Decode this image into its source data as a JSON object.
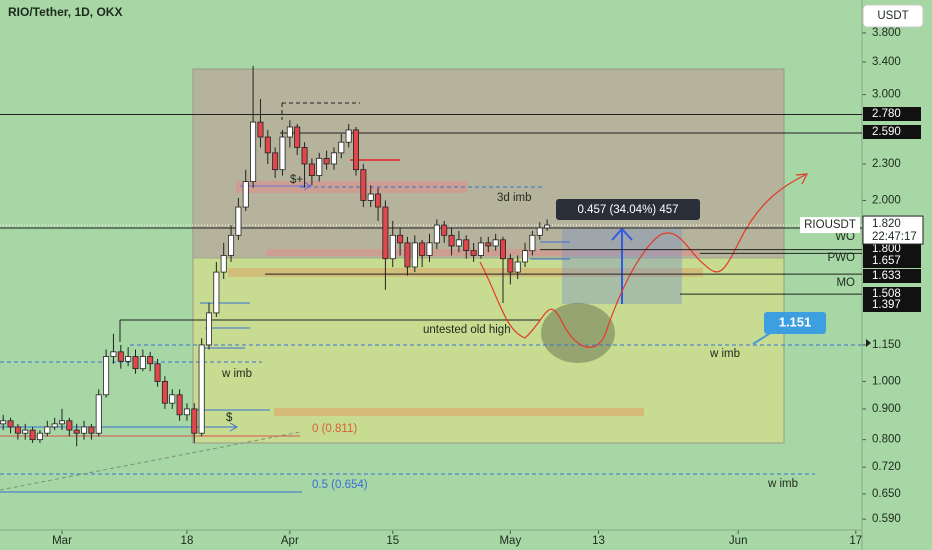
{
  "header": {
    "title": "RIO/Tether, 1D, OKX",
    "currency": "USDT"
  },
  "chart_data": {
    "type": "candlestick",
    "log_scale": true,
    "up_color": "#ffffff",
    "down_color": "#e0474c",
    "x": [
      "Feb 22",
      "Feb 23",
      "Feb 24",
      "Feb 25",
      "Feb 26",
      "Feb 27",
      "Feb 28",
      "Feb 29",
      "Mar 1",
      "Mar 2",
      "Mar 3",
      "Mar 4",
      "Mar 5",
      "Mar 6",
      "Mar 7",
      "Mar 8",
      "Mar 9",
      "Mar 10",
      "Mar 11",
      "Mar 12",
      "Mar 13",
      "Mar 14",
      "Mar 15",
      "Mar 16",
      "Mar 17",
      "Mar 18",
      "Mar 19",
      "Mar 20",
      "Mar 21",
      "Mar 22",
      "Mar 23",
      "Mar 24",
      "Mar 25",
      "Mar 26",
      "Mar 27",
      "Mar 28",
      "Mar 29",
      "Mar 30",
      "Mar 31",
      "Apr 1",
      "Apr 2",
      "Apr 3",
      "Apr 4",
      "Apr 5",
      "Apr 6",
      "Apr 7",
      "Apr 8",
      "Apr 9",
      "Apr 10",
      "Apr 11",
      "Apr 12",
      "Apr 13",
      "Apr 14",
      "Apr 15",
      "Apr 16",
      "Apr 17",
      "Apr 18",
      "Apr 19",
      "Apr 20",
      "Apr 21",
      "Apr 22",
      "Apr 23",
      "Apr 24",
      "Apr 25",
      "Apr 26",
      "Apr 27",
      "Apr 28",
      "Apr 29",
      "Apr 30",
      "May 1",
      "May 2",
      "May 3",
      "May 4",
      "May 5",
      "May 6"
    ],
    "open": [
      0.85,
      0.86,
      0.84,
      0.82,
      0.83,
      0.8,
      0.82,
      0.84,
      0.85,
      0.86,
      0.83,
      0.82,
      0.84,
      0.82,
      0.95,
      1.1,
      1.12,
      1.08,
      1.1,
      1.05,
      1.1,
      1.07,
      1.0,
      0.92,
      0.95,
      0.88,
      0.9,
      0.82,
      1.15,
      1.3,
      1.52,
      1.62,
      1.75,
      1.95,
      2.15,
      2.7,
      2.55,
      2.4,
      2.25,
      2.55,
      2.65,
      2.45,
      2.3,
      2.2,
      2.35,
      2.3,
      2.4,
      2.5,
      2.62,
      2.25,
      2.0,
      2.05,
      1.95,
      1.6,
      1.75,
      1.7,
      1.55,
      1.7,
      1.62,
      1.7,
      1.82,
      1.75,
      1.68,
      1.72,
      1.65,
      1.62,
      1.7,
      1.68,
      1.72,
      1.6,
      1.52,
      1.58,
      1.65,
      1.75,
      1.8
    ],
    "high": [
      0.88,
      0.87,
      0.85,
      0.85,
      0.84,
      0.83,
      0.86,
      0.87,
      0.9,
      0.87,
      0.85,
      0.86,
      0.85,
      0.97,
      1.13,
      1.2,
      1.15,
      1.14,
      1.13,
      1.13,
      1.12,
      1.09,
      1.02,
      0.97,
      0.97,
      0.92,
      0.92,
      1.18,
      1.35,
      1.58,
      1.7,
      1.82,
      2.02,
      2.25,
      3.35,
      2.95,
      2.62,
      2.45,
      2.62,
      2.72,
      2.68,
      2.5,
      2.35,
      2.4,
      2.42,
      2.45,
      2.58,
      2.68,
      2.65,
      2.3,
      2.12,
      2.1,
      2.0,
      1.85,
      1.8,
      1.74,
      1.75,
      1.72,
      1.76,
      1.86,
      1.85,
      1.8,
      1.78,
      1.75,
      1.7,
      1.74,
      1.74,
      1.76,
      1.74,
      1.63,
      1.62,
      1.7,
      1.78,
      1.84,
      1.86
    ],
    "low": [
      0.83,
      0.82,
      0.8,
      0.8,
      0.79,
      0.79,
      0.81,
      0.83,
      0.83,
      0.81,
      0.78,
      0.8,
      0.8,
      0.81,
      0.94,
      1.07,
      1.05,
      1.06,
      1.03,
      1.04,
      1.04,
      0.98,
      0.9,
      0.9,
      0.86,
      0.86,
      0.79,
      0.81,
      1.13,
      1.28,
      1.48,
      1.58,
      1.72,
      1.92,
      2.1,
      2.45,
      2.3,
      2.18,
      2.2,
      2.45,
      2.38,
      2.1,
      2.12,
      2.15,
      2.25,
      2.25,
      2.35,
      2.45,
      2.2,
      1.95,
      1.95,
      1.85,
      1.42,
      1.55,
      1.62,
      1.5,
      1.52,
      1.55,
      1.58,
      1.66,
      1.7,
      1.62,
      1.64,
      1.6,
      1.58,
      1.6,
      1.64,
      1.65,
      1.35,
      1.45,
      1.48,
      1.55,
      1.62,
      1.72,
      1.78
    ],
    "close": [
      0.86,
      0.84,
      0.82,
      0.83,
      0.8,
      0.82,
      0.84,
      0.85,
      0.86,
      0.83,
      0.82,
      0.84,
      0.82,
      0.95,
      1.1,
      1.12,
      1.08,
      1.1,
      1.05,
      1.1,
      1.07,
      1.0,
      0.92,
      0.95,
      0.88,
      0.9,
      0.82,
      1.15,
      1.3,
      1.52,
      1.62,
      1.75,
      1.95,
      2.15,
      2.7,
      2.55,
      2.4,
      2.25,
      2.55,
      2.65,
      2.45,
      2.3,
      2.2,
      2.35,
      2.3,
      2.4,
      2.5,
      2.62,
      2.25,
      2.0,
      2.05,
      1.95,
      1.6,
      1.75,
      1.7,
      1.55,
      1.7,
      1.62,
      1.7,
      1.82,
      1.75,
      1.68,
      1.72,
      1.65,
      1.62,
      1.7,
      1.68,
      1.72,
      1.6,
      1.52,
      1.58,
      1.65,
      1.75,
      1.8,
      1.82
    ],
    "ylim": [
      0.566,
      4.31
    ],
    "yticks": [
      {
        "value": 3.8,
        "label": "3.800"
      },
      {
        "value": 3.4,
        "label": "3.400"
      },
      {
        "value": 3.0,
        "label": "3.000"
      },
      {
        "value": 2.3,
        "label": "2.300"
      },
      {
        "value": 2.0,
        "label": "2.000"
      },
      {
        "value": 1.15,
        "label": "1.150"
      },
      {
        "value": 1.0,
        "label": "1.000"
      },
      {
        "value": 0.9,
        "label": "0.900"
      },
      {
        "value": 0.8,
        "label": "0.800"
      },
      {
        "value": 0.72,
        "label": "0.720"
      },
      {
        "value": 0.65,
        "label": "0.650"
      },
      {
        "value": 0.59,
        "label": "0.590"
      }
    ],
    "xticks": [
      {
        "value": "Mar 1",
        "label": "Mar"
      },
      {
        "value": "Mar 18",
        "label": "18"
      },
      {
        "value": "Apr 1",
        "label": "Apr"
      },
      {
        "value": "Apr 15",
        "label": "15"
      },
      {
        "value": "May 1",
        "label": "May"
      },
      {
        "value": "May 13",
        "label": "13"
      },
      {
        "value": "Jun 1",
        "label": "Jun"
      },
      {
        "value": "Jun 17",
        "label": "17"
      }
    ],
    "price_levels": [
      {
        "value": 2.78,
        "label": "2.780"
      },
      {
        "value": 2.59,
        "label": "2.590"
      },
      {
        "name": "WO",
        "value": 1.8,
        "label": "1.800"
      },
      {
        "name": "PWO",
        "value": 1.657,
        "label": "1.657"
      },
      {
        "name": "MO",
        "value": 1.633,
        "label": "1.633"
      },
      {
        "value": 1.508,
        "label": "1.508"
      },
      {
        "value": 1.397,
        "label": "1.397"
      }
    ],
    "last_price": {
      "name": "RIOUSDT",
      "value": 1.82,
      "label": "1.820",
      "countdown": "22:47:17"
    },
    "measure": {
      "label": "0.457 (34.04%) 457"
    },
    "target": {
      "label": "1.151"
    },
    "annotations": [
      "3d imb",
      "untested old high",
      "w imb",
      "w imb",
      "w imb",
      "0 (0.811)",
      "0.5 (0.654)",
      "$+",
      "$"
    ]
  }
}
